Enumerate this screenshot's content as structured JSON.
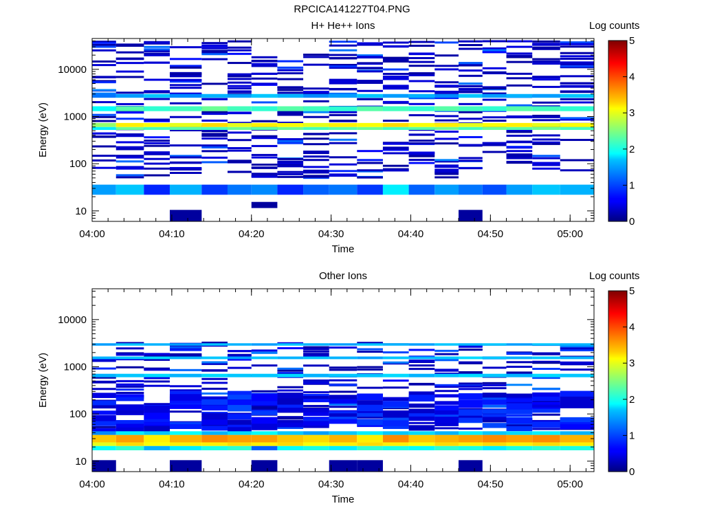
{
  "figure": {
    "title": "RPCICA141227T04.PNG"
  },
  "chart_data": [
    {
      "type": "heatmap",
      "title": "H+ He++ Ions",
      "xlabel": "Time",
      "ylabel": "Energy (eV)",
      "x_ticks": [
        "04:00",
        "04:10",
        "04:20",
        "04:30",
        "04:40",
        "04:50",
        "05:00"
      ],
      "x_range": [
        "04:00",
        "05:03"
      ],
      "y_scale": "log",
      "y_ticks": [
        "10",
        "100",
        "1000",
        "10000"
      ],
      "y_range": [
        6,
        45000
      ],
      "colorbar": {
        "label": "Log counts",
        "ticks": [
          "0",
          "1",
          "2",
          "3",
          "4",
          "5"
        ],
        "range": [
          0,
          5
        ]
      },
      "time_bins": [
        "04:00:30",
        "04:05:30",
        "04:07:30",
        "04:12:00",
        "04:15:30",
        "04:18:30",
        "04:21:30",
        "04:25:00",
        "04:28:00",
        "04:31:30",
        "04:35:00",
        "04:38:00",
        "04:41:30",
        "04:44:30",
        "04:47:30",
        "04:50:30",
        "04:53:30",
        "04:57:00",
        "05:00:30"
      ],
      "bands": [
        {
          "e_low": 22,
          "e_high": 36,
          "values": [
            1.4,
            1.6,
            0.8,
            1.5,
            0.9,
            1.2,
            1.3,
            0.8,
            1.1,
            1.2,
            0.9,
            1.8,
            1.1,
            1.4,
            1.2,
            1.0,
            1.4,
            1.6,
            1.5
          ]
        },
        {
          "e_low": 520,
          "e_high": 600,
          "values": [
            1.8,
            2.4,
            2.2,
            2.3,
            2.2,
            2.4,
            2.3,
            2.4,
            2.2,
            2.3,
            2.4,
            2.2,
            2.3,
            2.4,
            2.2,
            2.4,
            2.3,
            2.4,
            2.2
          ]
        },
        {
          "e_low": 600,
          "e_high": 730,
          "values": [
            2.6,
            3.2,
            3.1,
            3.0,
            3.3,
            3.0,
            3.2,
            3.1,
            3.0,
            3.2,
            3.1,
            3.3,
            3.1,
            3.2,
            3.0,
            3.1,
            3.2,
            3.0,
            3.1
          ]
        },
        {
          "e_low": 1300,
          "e_high": 1650,
          "values": [
            1.9,
            2.3,
            2.1,
            2.2,
            2.4,
            2.2,
            2.1,
            2.3,
            2.2,
            2.1,
            2.3,
            2.2,
            2.1,
            2.3,
            2.2,
            2.1,
            2.3,
            2.2,
            2.1
          ]
        },
        {
          "e_low": 2500,
          "e_high": 3000,
          "values": [
            1.2,
            1.4,
            1.6,
            1.3,
            1.5,
            1.4,
            1.6,
            1.5,
            1.3,
            1.4,
            1.6,
            1.4,
            1.5,
            1.3,
            1.6,
            1.4,
            1.5,
            1.4,
            1.6
          ]
        }
      ]
    },
    {
      "type": "heatmap",
      "title": "Other Ions",
      "xlabel": "Time",
      "ylabel": "Energy (eV)",
      "x_ticks": [
        "04:00",
        "04:10",
        "04:20",
        "04:30",
        "04:40",
        "04:50",
        "05:00"
      ],
      "x_range": [
        "04:00",
        "05:03"
      ],
      "y_scale": "log",
      "y_ticks": [
        "10",
        "100",
        "1000",
        "10000"
      ],
      "y_range": [
        6,
        45000
      ],
      "colorbar": {
        "label": "Log counts",
        "ticks": [
          "0",
          "1",
          "2",
          "3",
          "4",
          "5"
        ],
        "range": [
          0,
          5
        ]
      },
      "time_bins": [
        "04:00:30",
        "04:05:30",
        "04:07:30",
        "04:12:00",
        "04:15:30",
        "04:18:30",
        "04:21:30",
        "04:25:00",
        "04:28:00",
        "04:31:30",
        "04:35:00",
        "04:38:00",
        "04:41:30",
        "04:44:30",
        "04:47:30",
        "04:50:30",
        "04:53:30",
        "04:57:00",
        "05:00:30"
      ],
      "bands": [
        {
          "e_low": 17,
          "e_high": 21,
          "values": [
            1.9,
            2.1,
            1.5,
            1.8,
            2.0,
            2.1,
            1.1,
            1.9,
            2.0,
            1.8,
            2.1,
            2.0,
            1.9,
            2.1,
            2.0,
            1.8,
            2.0,
            2.1,
            2.0
          ]
        },
        {
          "e_low": 21,
          "e_high": 25,
          "values": [
            3.0,
            3.3,
            3.1,
            3.2,
            3.2,
            3.3,
            3.2,
            3.3,
            3.1,
            3.2,
            3.3,
            3.2,
            3.1,
            3.3,
            3.2,
            3.3,
            3.2,
            3.3,
            3.2
          ]
        },
        {
          "e_low": 25,
          "e_high": 36,
          "values": [
            3.4,
            3.6,
            3.2,
            3.5,
            3.7,
            3.6,
            3.6,
            3.4,
            3.3,
            3.5,
            3.2,
            3.7,
            3.4,
            3.5,
            3.6,
            3.7,
            3.6,
            3.7,
            3.5
          ]
        },
        {
          "e_low": 36,
          "e_high": 43,
          "values": [
            1.3,
            1.8,
            1.6,
            1.9,
            1.5,
            1.7,
            1.9,
            1.6,
            1.4,
            1.6,
            1.8,
            1.6,
            1.7,
            1.5,
            1.8,
            1.6,
            1.7,
            1.8,
            1.5
          ]
        },
        {
          "e_low": 600,
          "e_high": 710,
          "values": [
            1.5,
            1.6,
            1.7,
            1.5,
            1.7,
            1.6,
            1.6,
            1.7,
            1.5,
            1.6,
            1.6,
            1.7,
            1.5,
            1.6,
            1.7,
            1.6,
            1.5,
            1.7,
            1.6
          ]
        },
        {
          "e_low": 1450,
          "e_high": 1650,
          "values": [
            1.5,
            1.6,
            1.7,
            1.5,
            1.6,
            1.4,
            1.6,
            1.5,
            1.6,
            1.5,
            1.4,
            1.6,
            1.5,
            1.6,
            1.7,
            1.6,
            1.5,
            1.6,
            1.5
          ]
        },
        {
          "e_low": 2800,
          "e_high": 3150,
          "values": [
            1.4,
            1.6,
            1.5,
            1.4,
            1.6,
            1.5,
            1.4,
            1.6,
            1.5,
            1.4,
            1.6,
            1.5,
            1.4,
            1.6,
            1.5,
            1.6,
            1.4,
            1.6,
            1.5
          ]
        }
      ]
    }
  ]
}
